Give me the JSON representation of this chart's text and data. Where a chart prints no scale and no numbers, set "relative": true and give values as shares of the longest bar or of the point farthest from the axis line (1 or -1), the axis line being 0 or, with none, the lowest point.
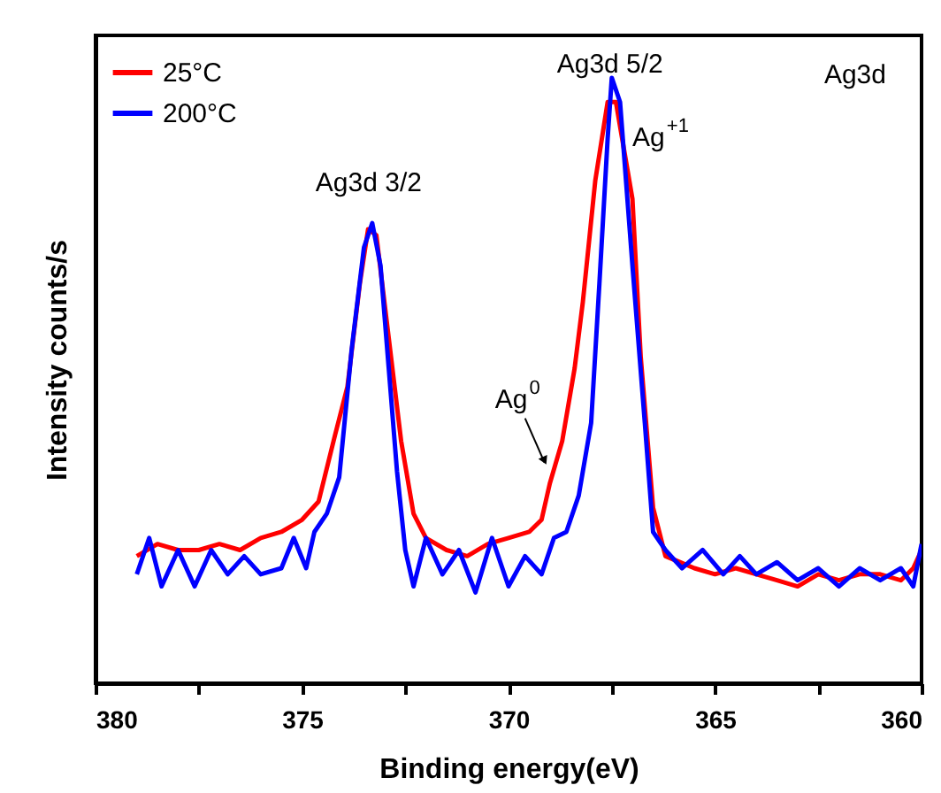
{
  "chart_data": {
    "type": "line",
    "relative": true,
    "xlabel": "Binding energy(eV)",
    "ylabel": "Intensity counts/s",
    "xlim": [
      380,
      360
    ],
    "xticks": [
      380,
      {
        "value": 377.5,
        "label": null
      },
      375,
      {
        "value": 372.5,
        "label": null
      },
      370,
      {
        "value": 367.5,
        "label": null
      },
      365,
      {
        "value": 362.5,
        "label": null
      },
      360
    ],
    "legend": "top left",
    "annotations": [
      "Ag3d",
      {
        "text": "Ag3d 3/2",
        "x": 373.3,
        "y": 0.76
      },
      {
        "text": "Ag3d 5/2",
        "x": 367.5,
        "y": 1.0
      },
      {
        "text": "Ag$^{+1}$",
        "x": 367.3,
        "y": 0.96
      },
      {
        "text": "Ag$^{0}$",
        "x": 369.0,
        "y": 0.35
      }
    ],
    "series": [
      {
        "name": "25°C",
        "color": "#ff0000",
        "x": [
          379,
          378.5,
          378,
          377.5,
          377,
          376.5,
          376,
          375.5,
          375,
          374.6,
          374.2,
          373.9,
          373.6,
          373.4,
          373.2,
          372.9,
          372.6,
          372.3,
          372.0,
          371.5,
          371,
          370.5,
          370,
          369.5,
          369.2,
          369.0,
          368.7,
          368.4,
          368.2,
          367.9,
          367.6,
          367.4,
          367.0,
          366.8,
          366.5,
          366.2,
          365.5,
          365,
          364.5,
          364,
          363.5,
          363,
          362.5,
          362,
          361.5,
          361,
          360.5,
          360.2,
          360
        ],
        "values": [
          0.21,
          0.23,
          0.22,
          0.22,
          0.23,
          0.22,
          0.24,
          0.25,
          0.27,
          0.3,
          0.41,
          0.49,
          0.66,
          0.75,
          0.74,
          0.57,
          0.4,
          0.28,
          0.24,
          0.22,
          0.21,
          0.23,
          0.24,
          0.25,
          0.27,
          0.33,
          0.4,
          0.52,
          0.63,
          0.83,
          0.96,
          0.96,
          0.8,
          0.54,
          0.29,
          0.21,
          0.19,
          0.18,
          0.19,
          0.18,
          0.17,
          0.16,
          0.18,
          0.17,
          0.18,
          0.18,
          0.17,
          0.19,
          0.22
        ]
      },
      {
        "name": "200°C",
        "color": "#0000ff",
        "x": [
          379,
          378.7,
          378.4,
          378,
          377.6,
          377.2,
          376.8,
          376.4,
          376,
          375.5,
          375.2,
          374.9,
          374.7,
          374.4,
          374.1,
          373.8,
          373.5,
          373.3,
          373.1,
          372.9,
          372.7,
          372.5,
          372.3,
          372.0,
          371.6,
          371.2,
          370.8,
          370.4,
          370,
          369.6,
          369.2,
          368.9,
          368.6,
          368.3,
          368.0,
          367.8,
          367.6,
          367.5,
          367.3,
          367.0,
          366.7,
          366.5,
          366.2,
          365.8,
          365.3,
          364.8,
          364.4,
          364,
          363.5,
          363,
          362.5,
          362,
          361.5,
          361,
          360.5,
          360.2,
          360
        ],
        "values": [
          0.18,
          0.24,
          0.16,
          0.22,
          0.16,
          0.22,
          0.18,
          0.21,
          0.18,
          0.19,
          0.24,
          0.19,
          0.25,
          0.28,
          0.34,
          0.55,
          0.72,
          0.76,
          0.69,
          0.52,
          0.35,
          0.22,
          0.16,
          0.24,
          0.18,
          0.22,
          0.15,
          0.24,
          0.16,
          0.21,
          0.18,
          0.24,
          0.25,
          0.31,
          0.43,
          0.66,
          0.9,
          1.0,
          0.96,
          0.69,
          0.43,
          0.25,
          0.22,
          0.19,
          0.22,
          0.18,
          0.21,
          0.18,
          0.2,
          0.17,
          0.19,
          0.16,
          0.19,
          0.17,
          0.19,
          0.16,
          0.23
        ]
      }
    ]
  }
}
